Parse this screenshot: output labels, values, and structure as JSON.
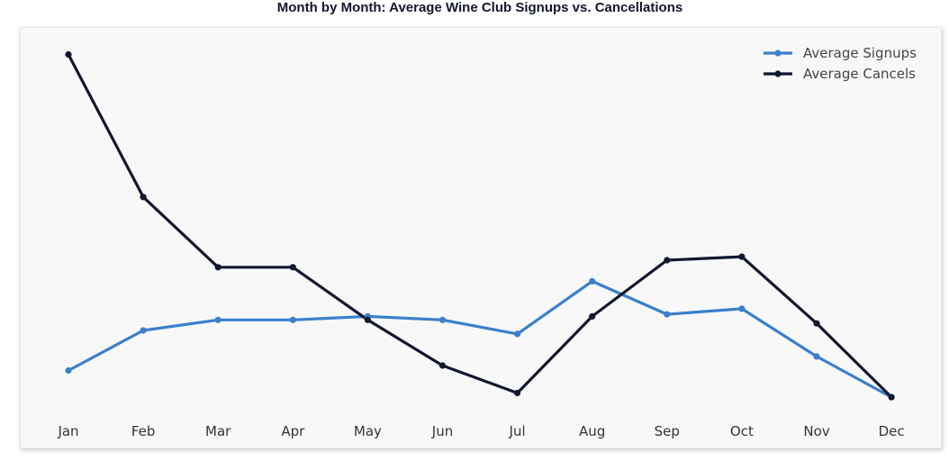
{
  "chart_data": {
    "type": "line",
    "title": "Month by Month: Average Wine Club Signups vs. Cancellations",
    "xlabel": "",
    "ylabel": "",
    "categories": [
      "Jan",
      "Feb",
      "Mar",
      "Apr",
      "May",
      "Jun",
      "Jul",
      "Aug",
      "Sep",
      "Oct",
      "Nov",
      "Dec"
    ],
    "series": [
      {
        "name": "Average Signups",
        "color": "#3a80cc",
        "values": [
          0.75,
          1.32,
          1.47,
          1.47,
          1.52,
          1.47,
          1.27,
          2.02,
          1.55,
          1.63,
          0.95,
          0.37
        ]
      },
      {
        "name": "Average Cancels",
        "color": "#12172e",
        "values": [
          5.25,
          3.22,
          2.22,
          2.22,
          1.47,
          0.82,
          0.43,
          1.52,
          2.32,
          2.37,
          1.42,
          0.37
        ]
      }
    ],
    "ylim": [
      0,
      5.5
    ],
    "y_ticks_visible": false,
    "grid": false,
    "legend_position": "top-right"
  }
}
